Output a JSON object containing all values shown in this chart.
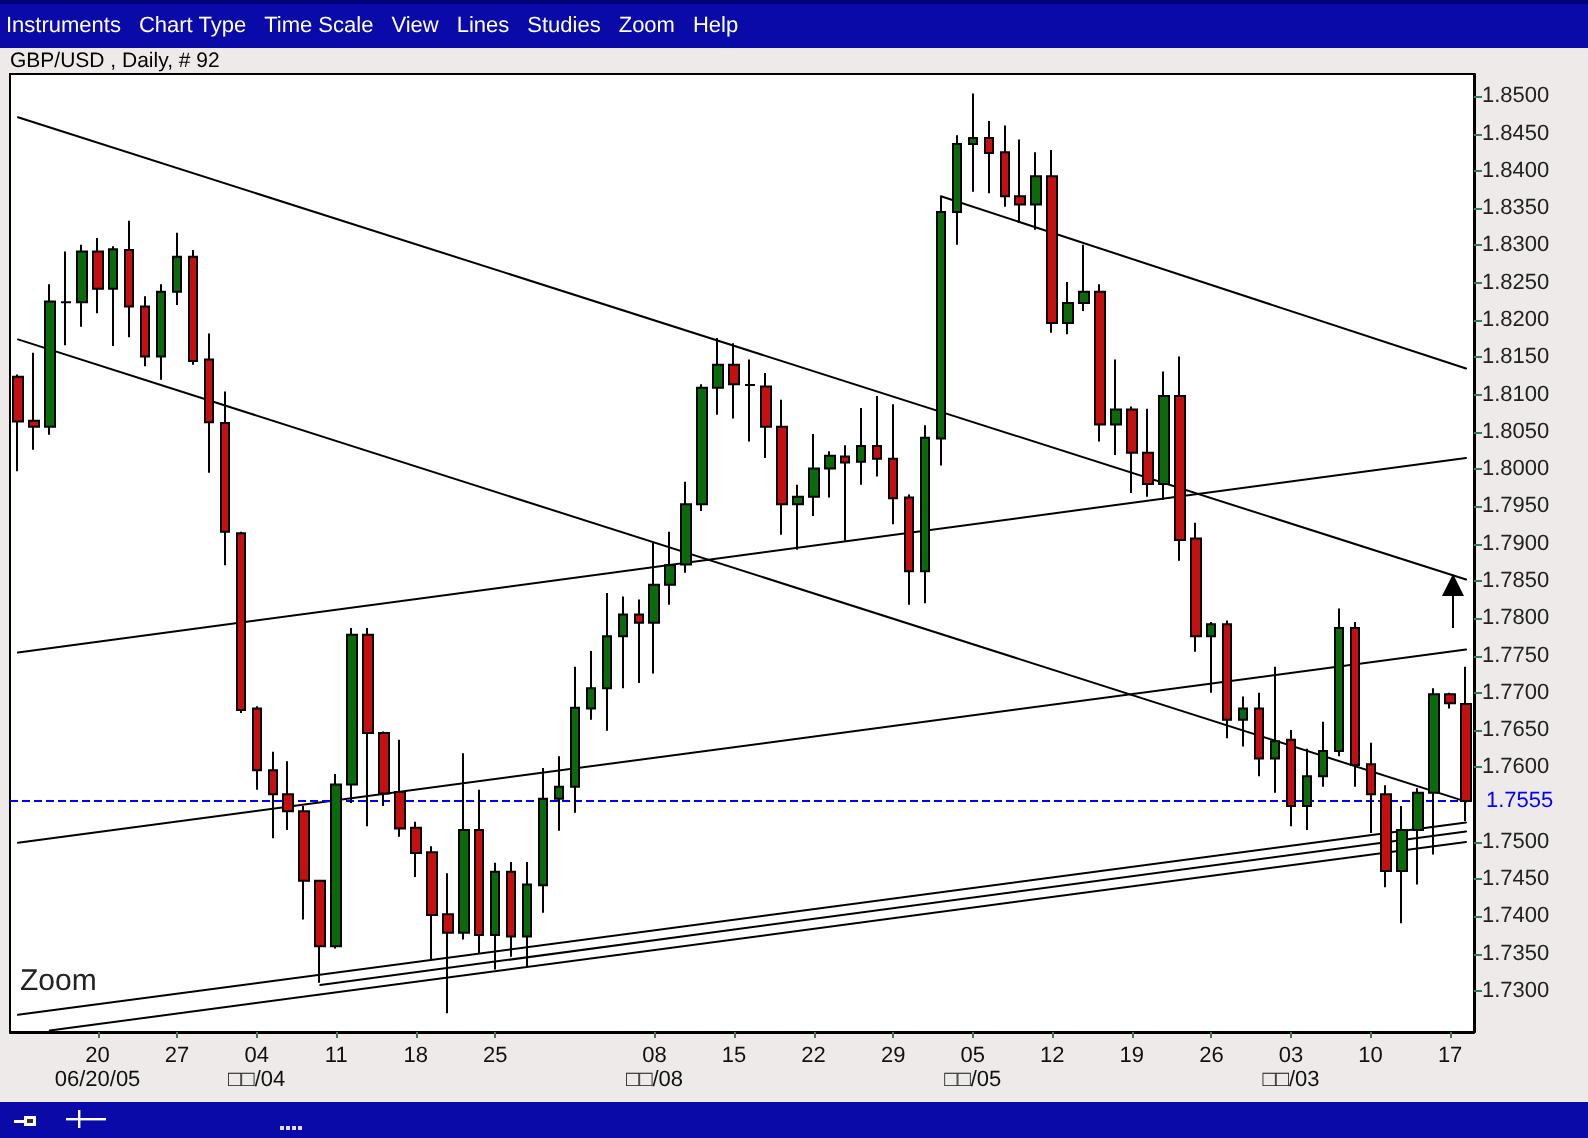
{
  "chart_data": {
    "type": "candlestick",
    "title": "GBP/USD , Daily, # 92",
    "annotations": [
      "Instruments",
      "Chart Type",
      "Time Scale",
      "View",
      "Lines",
      "Studies",
      "Zoom",
      "Help",
      "Zoom"
    ],
    "categories": [
      null,
      null,
      null,
      null,
      null,
      "20\n06/20/05",
      null,
      null,
      null,
      null,
      "27",
      null,
      null,
      null,
      null,
      "04\n□□/04",
      null,
      null,
      null,
      null,
      "11",
      null,
      null,
      null,
      null,
      "18",
      null,
      null,
      null,
      null,
      "25",
      null,
      null,
      null,
      null,
      null,
      null,
      null,
      null,
      null,
      "08\n□□/08",
      null,
      null,
      null,
      null,
      "15",
      null,
      null,
      null,
      null,
      "22",
      null,
      null,
      null,
      null,
      "29",
      null,
      null,
      null,
      null,
      "05\n□□/05",
      null,
      null,
      null,
      null,
      "12",
      null,
      null,
      null,
      null,
      "19",
      null,
      null,
      null,
      null,
      "26",
      null,
      null,
      null,
      null,
      "03\n□□/03",
      null,
      null,
      null,
      null,
      "10",
      null,
      null,
      null,
      null,
      "17",
      null
    ],
    "ohlc": [
      [
        1.8124,
        1.8127,
        1.7997,
        1.8064
      ],
      [
        1.8065,
        1.8156,
        1.8026,
        1.8057
      ],
      [
        1.8057,
        1.8248,
        1.8046,
        1.8225
      ],
      [
        1.8224,
        1.8292,
        1.8166,
        1.8224
      ],
      [
        1.8224,
        1.8301,
        1.8191,
        1.8292
      ],
      [
        1.8292,
        1.831,
        1.8209,
        1.8242
      ],
      [
        1.8242,
        1.8299,
        1.8165,
        1.8295
      ],
      [
        1.8294,
        1.8333,
        1.8177,
        1.8218
      ],
      [
        1.8218,
        1.8232,
        1.8138,
        1.8151
      ],
      [
        1.8151,
        1.8248,
        1.812,
        1.8238
      ],
      [
        1.8238,
        1.8317,
        1.822,
        1.8285
      ],
      [
        1.8285,
        1.8294,
        1.814,
        1.8145
      ],
      [
        1.8147,
        1.8182,
        1.7995,
        1.8063
      ],
      [
        1.8062,
        1.8104,
        1.7871,
        1.7916
      ],
      [
        1.7914,
        1.7916,
        1.7673,
        1.7677
      ],
      [
        1.7679,
        1.7682,
        1.757,
        1.7596
      ],
      [
        1.7596,
        1.7621,
        1.7505,
        1.7564
      ],
      [
        1.7564,
        1.7608,
        1.7516,
        1.7541
      ],
      [
        1.7541,
        1.7548,
        1.7396,
        1.7448
      ],
      [
        1.7448,
        1.7448,
        1.7311,
        1.736
      ],
      [
        1.736,
        1.7591,
        1.7357,
        1.7577
      ],
      [
        1.7577,
        1.7787,
        1.7552,
        1.7778
      ],
      [
        1.7778,
        1.7787,
        1.7521,
        1.7646
      ],
      [
        1.7646,
        1.7648,
        1.7548,
        1.7565
      ],
      [
        1.7567,
        1.7637,
        1.7507,
        1.7518
      ],
      [
        1.7519,
        1.7527,
        1.7453,
        1.7485
      ],
      [
        1.7486,
        1.7494,
        1.7342,
        1.7402
      ],
      [
        1.7403,
        1.7458,
        1.727,
        1.7378
      ],
      [
        1.7378,
        1.7619,
        1.7369,
        1.7516
      ],
      [
        1.7516,
        1.757,
        1.7351,
        1.7375
      ],
      [
        1.7375,
        1.7472,
        1.7329,
        1.746
      ],
      [
        1.746,
        1.7473,
        1.7346,
        1.7373
      ],
      [
        1.7373,
        1.7473,
        1.7333,
        1.7443
      ],
      [
        1.7442,
        1.7599,
        1.7405,
        1.7558
      ],
      [
        1.7558,
        1.7615,
        1.7515,
        1.7574
      ],
      [
        1.7574,
        1.7735,
        1.7539,
        1.768
      ],
      [
        1.7679,
        1.7756,
        1.7664,
        1.7706
      ],
      [
        1.7706,
        1.7834,
        1.7649,
        1.7776
      ],
      [
        1.7776,
        1.7829,
        1.7706,
        1.7805
      ],
      [
        1.7805,
        1.7825,
        1.7713,
        1.7794
      ],
      [
        1.7794,
        1.7901,
        1.7726,
        1.7845
      ],
      [
        1.7845,
        1.7916,
        1.7818,
        1.7871
      ],
      [
        1.7872,
        1.7983,
        1.7861,
        1.7953
      ],
      [
        1.7953,
        1.8114,
        1.7944,
        1.8109
      ],
      [
        1.8109,
        1.8176,
        1.8073,
        1.814
      ],
      [
        1.814,
        1.8169,
        1.8068,
        1.8114
      ],
      [
        1.8113,
        1.8147,
        1.8037,
        1.8113
      ],
      [
        1.8111,
        1.8129,
        1.8015,
        1.8057
      ],
      [
        1.8057,
        1.8093,
        1.7912,
        1.7953
      ],
      [
        1.7953,
        1.7979,
        1.7892,
        1.7963
      ],
      [
        1.7963,
        1.8047,
        1.7937,
        1.8001
      ],
      [
        1.8001,
        1.8024,
        1.7962,
        1.8018
      ],
      [
        1.8017,
        1.8032,
        1.7904,
        1.8009
      ],
      [
        1.801,
        1.8082,
        1.7979,
        1.8031
      ],
      [
        1.8031,
        1.8098,
        1.799,
        1.8014
      ],
      [
        1.8014,
        1.8087,
        1.7926,
        1.7961
      ],
      [
        1.7962,
        1.7966,
        1.7818,
        1.7863
      ],
      [
        1.7863,
        1.8059,
        1.782,
        1.8042
      ],
      [
        1.8041,
        1.8366,
        1.8005,
        1.8345
      ],
      [
        1.8345,
        1.8448,
        1.8301,
        1.8436
      ],
      [
        1.8436,
        1.8504,
        1.8372,
        1.8444
      ],
      [
        1.8444,
        1.8467,
        1.837,
        1.8424
      ],
      [
        1.8425,
        1.8461,
        1.8352,
        1.8366
      ],
      [
        1.8366,
        1.8442,
        1.833,
        1.8355
      ],
      [
        1.8355,
        1.8425,
        1.8321,
        1.8393
      ],
      [
        1.8393,
        1.8428,
        1.8183,
        1.8196
      ],
      [
        1.8196,
        1.8251,
        1.8181,
        1.8223
      ],
      [
        1.8223,
        1.8301,
        1.8212,
        1.8238
      ],
      [
        1.8238,
        1.8248,
        1.8037,
        1.806
      ],
      [
        1.806,
        1.8147,
        1.8019,
        1.808
      ],
      [
        1.808,
        1.8084,
        1.7968,
        1.8022
      ],
      [
        1.8022,
        1.8081,
        1.7963,
        1.798
      ],
      [
        1.798,
        1.8131,
        1.7959,
        1.8098
      ],
      [
        1.8098,
        1.8151,
        1.7877,
        1.7905
      ],
      [
        1.7907,
        1.7928,
        1.7755,
        1.7776
      ],
      [
        1.7776,
        1.7795,
        1.77,
        1.7792
      ],
      [
        1.7792,
        1.7797,
        1.7639,
        1.7664
      ],
      [
        1.7664,
        1.7695,
        1.7628,
        1.7679
      ],
      [
        1.7679,
        1.77,
        1.7588,
        1.7612
      ],
      [
        1.7612,
        1.7735,
        1.7566,
        1.7635
      ],
      [
        1.7637,
        1.765,
        1.7521,
        1.7548
      ],
      [
        1.7548,
        1.7625,
        1.7516,
        1.7588
      ],
      [
        1.7588,
        1.7661,
        1.7574,
        1.7622
      ],
      [
        1.7622,
        1.7813,
        1.7615,
        1.7787
      ],
      [
        1.7787,
        1.7795,
        1.7574,
        1.7603
      ],
      [
        1.7604,
        1.7633,
        1.7512,
        1.7564
      ],
      [
        1.7564,
        1.7576,
        1.7439,
        1.7461
      ],
      [
        1.7461,
        1.7548,
        1.7391,
        1.7516
      ],
      [
        1.7516,
        1.7572,
        1.7443,
        1.7566
      ],
      [
        1.7566,
        1.7706,
        1.7483,
        1.7698
      ],
      [
        1.7698,
        1.77,
        1.7679,
        1.7686
      ],
      [
        1.7685,
        1.7735,
        1.7528,
        1.7555
      ]
    ],
    "colors": [
      "#c41010",
      "#c41010",
      "#0b6b0b",
      "#000000",
      "#0b6b0b",
      "#c41010",
      "#0b6b0b",
      "#c41010",
      "#c41010",
      "#0b6b0b",
      "#0b6b0b",
      "#c41010",
      "#c41010",
      "#c41010",
      "#c41010",
      "#c41010",
      "#c41010",
      "#c41010",
      "#c41010",
      "#c41010",
      "#0b6b0b",
      "#0b6b0b",
      "#c41010",
      "#c41010",
      "#c41010",
      "#c41010",
      "#c41010",
      "#c41010",
      "#0b6b0b",
      "#c41010",
      "#0b6b0b",
      "#c41010",
      "#0b6b0b",
      "#0b6b0b",
      "#0b6b0b",
      "#0b6b0b",
      "#0b6b0b",
      "#0b6b0b",
      "#0b6b0b",
      "#c41010",
      "#0b6b0b",
      "#0b6b0b",
      "#0b6b0b",
      "#0b6b0b",
      "#0b6b0b",
      "#c41010",
      "#000000",
      "#c41010",
      "#c41010",
      "#0b6b0b",
      "#0b6b0b",
      "#0b6b0b",
      "#c41010",
      "#0b6b0b",
      "#c41010",
      "#c41010",
      "#c41010",
      "#0b6b0b",
      "#0b6b0b",
      "#0b6b0b",
      "#0b6b0b",
      "#c41010",
      "#c41010",
      "#c41010",
      "#0b6b0b",
      "#c41010",
      "#0b6b0b",
      "#0b6b0b",
      "#c41010",
      "#0b6b0b",
      "#c41010",
      "#c41010",
      "#0b6b0b",
      "#c41010",
      "#c41010",
      "#0b6b0b",
      "#c41010",
      "#0b6b0b",
      "#c41010",
      "#0b6b0b",
      "#c41010",
      "#0b6b0b",
      "#0b6b0b",
      "#0b6b0b",
      "#c41010",
      "#c41010",
      "#c41010",
      "#0b6b0b",
      "#0b6b0b",
      "#0b6b0b",
      "#c41010",
      "#c41010"
    ],
    "series": [
      {
        "type": "line",
        "color": "#000000",
        "values": [
          1.8472,
          null,
          null,
          null,
          null,
          null,
          null,
          null,
          null,
          null,
          null,
          null,
          null,
          null,
          null,
          null,
          null,
          null,
          null,
          null,
          null,
          null,
          null,
          null,
          null,
          null,
          null,
          null,
          null,
          null,
          null,
          null,
          null,
          null,
          null,
          null,
          null,
          null,
          null,
          null,
          null,
          null,
          null,
          null,
          null,
          null,
          null,
          null,
          null,
          null,
          null,
          null,
          null,
          null,
          null,
          null,
          null,
          null,
          null,
          null,
          null,
          null,
          null,
          null,
          null,
          null,
          null,
          null,
          null,
          null,
          null,
          null,
          null,
          null,
          null,
          null,
          null,
          null,
          null,
          null,
          null,
          null,
          null,
          null,
          null,
          null,
          null,
          null,
          null,
          null,
          null,
          1.7852
        ]
      },
      {
        "type": "line",
        "color": "#000000",
        "values": [
          1.8174,
          null,
          null,
          null,
          null,
          null,
          null,
          null,
          null,
          null,
          null,
          null,
          null,
          null,
          null,
          null,
          null,
          null,
          null,
          null,
          null,
          null,
          null,
          null,
          null,
          null,
          null,
          null,
          null,
          null,
          null,
          null,
          null,
          null,
          null,
          null,
          null,
          null,
          null,
          null,
          null,
          null,
          null,
          null,
          null,
          null,
          null,
          null,
          null,
          null,
          null,
          null,
          null,
          null,
          null,
          null,
          null,
          null,
          null,
          null,
          null,
          null,
          null,
          null,
          null,
          null,
          null,
          null,
          null,
          null,
          null,
          null,
          null,
          null,
          null,
          null,
          null,
          null,
          null,
          null,
          null,
          null,
          null,
          null,
          null,
          null,
          null,
          null,
          null,
          null,
          null,
          1.7554
        ]
      },
      {
        "type": "line",
        "color": "#000000",
        "values": [
          1.7754,
          null,
          null,
          null,
          null,
          null,
          null,
          null,
          null,
          null,
          null,
          null,
          null,
          null,
          null,
          null,
          null,
          null,
          null,
          null,
          null,
          null,
          null,
          null,
          null,
          null,
          null,
          null,
          null,
          null,
          null,
          null,
          null,
          null,
          null,
          null,
          null,
          null,
          null,
          null,
          null,
          null,
          null,
          null,
          null,
          null,
          null,
          null,
          null,
          null,
          null,
          null,
          null,
          null,
          null,
          null,
          null,
          null,
          null,
          null,
          null,
          null,
          null,
          null,
          null,
          null,
          null,
          null,
          null,
          null,
          null,
          null,
          null,
          null,
          null,
          null,
          null,
          null,
          null,
          null,
          null,
          null,
          null,
          null,
          null,
          null,
          null,
          null,
          null,
          null,
          null,
          1.8015
        ]
      },
      {
        "type": "line",
        "color": "#000000",
        "values": [
          1.7499,
          null,
          null,
          null,
          null,
          null,
          null,
          null,
          null,
          null,
          null,
          null,
          null,
          null,
          null,
          null,
          null,
          null,
          null,
          null,
          null,
          null,
          null,
          null,
          null,
          null,
          null,
          null,
          null,
          null,
          null,
          null,
          null,
          null,
          null,
          null,
          null,
          null,
          null,
          null,
          null,
          null,
          null,
          null,
          null,
          null,
          null,
          null,
          null,
          null,
          null,
          null,
          null,
          null,
          null,
          null,
          null,
          null,
          null,
          null,
          null,
          null,
          null,
          null,
          null,
          null,
          null,
          null,
          null,
          null,
          null,
          null,
          null,
          null,
          null,
          null,
          null,
          null,
          null,
          null,
          null,
          null,
          null,
          null,
          null,
          null,
          null,
          null,
          null,
          null,
          null,
          1.7758
        ]
      },
      {
        "type": "line",
        "color": "#000000",
        "values": [
          null,
          null,
          null,
          null,
          null,
          null,
          null,
          null,
          null,
          null,
          null,
          null,
          null,
          null,
          null,
          null,
          null,
          null,
          null,
          null,
          null,
          null,
          null,
          null,
          null,
          null,
          null,
          null,
          null,
          null,
          null,
          null,
          null,
          null,
          null,
          null,
          null,
          null,
          null,
          null,
          null,
          null,
          null,
          null,
          null,
          null,
          null,
          null,
          null,
          null,
          null,
          null,
          null,
          null,
          null,
          null,
          null,
          null,
          1.8366,
          null,
          null,
          null,
          null,
          null,
          null,
          null,
          null,
          null,
          null,
          null,
          null,
          null,
          null,
          null,
          null,
          null,
          null,
          null,
          null,
          null,
          null,
          null,
          null,
          null,
          null,
          null,
          null,
          null,
          null,
          null,
          null,
          1.8135
        ]
      },
      {
        "type": "line",
        "color": "#000000",
        "values": [
          1.7268,
          null,
          null,
          null,
          null,
          null,
          null,
          null,
          null,
          null,
          null,
          null,
          null,
          null,
          null,
          null,
          null,
          null,
          null,
          null,
          null,
          null,
          null,
          null,
          null,
          null,
          null,
          null,
          null,
          null,
          null,
          null,
          null,
          null,
          null,
          null,
          null,
          null,
          null,
          null,
          null,
          null,
          null,
          null,
          null,
          null,
          null,
          null,
          null,
          null,
          null,
          null,
          null,
          null,
          null,
          null,
          null,
          null,
          null,
          null,
          null,
          null,
          null,
          null,
          null,
          null,
          null,
          null,
          null,
          null,
          null,
          null,
          null,
          null,
          null,
          null,
          null,
          null,
          null,
          null,
          null,
          null,
          null,
          null,
          null,
          null,
          null,
          null,
          null,
          null,
          null,
          1.7526
        ]
      },
      {
        "type": "line",
        "color": "#000000",
        "values": [
          null,
          null,
          null,
          null,
          null,
          null,
          null,
          null,
          null,
          null,
          null,
          null,
          null,
          null,
          null,
          null,
          null,
          null,
          null,
          1.7308,
          null,
          null,
          null,
          null,
          null,
          null,
          null,
          null,
          null,
          null,
          null,
          null,
          null,
          null,
          null,
          null,
          null,
          null,
          null,
          null,
          null,
          null,
          null,
          null,
          null,
          null,
          null,
          null,
          null,
          null,
          null,
          null,
          null,
          null,
          null,
          null,
          null,
          null,
          null,
          null,
          null,
          null,
          null,
          null,
          null,
          null,
          null,
          null,
          null,
          null,
          null,
          null,
          null,
          null,
          null,
          null,
          null,
          null,
          null,
          null,
          null,
          null,
          null,
          null,
          null,
          null,
          null,
          null,
          null,
          null,
          null,
          1.7514
        ]
      },
      {
        "type": "line",
        "color": "#000000",
        "values": [
          null,
          null,
          1.7247,
          null,
          null,
          null,
          null,
          null,
          null,
          null,
          null,
          null,
          null,
          null,
          null,
          null,
          null,
          null,
          null,
          null,
          null,
          null,
          null,
          null,
          null,
          null,
          null,
          null,
          null,
          null,
          null,
          null,
          null,
          null,
          null,
          null,
          null,
          null,
          null,
          null,
          null,
          null,
          null,
          null,
          null,
          null,
          null,
          null,
          null,
          null,
          null,
          null,
          null,
          null,
          null,
          null,
          null,
          null,
          null,
          null,
          null,
          null,
          null,
          null,
          null,
          null,
          null,
          null,
          null,
          null,
          null,
          null,
          null,
          null,
          null,
          null,
          null,
          null,
          null,
          null,
          null,
          null,
          null,
          null,
          null,
          null,
          null,
          null,
          null,
          null,
          null,
          1.75
        ]
      }
    ],
    "ylim": [
      1.7245,
      1.853
    ],
    "yticks": [
      {
        "value": 1.73,
        "label": "1.7300"
      },
      {
        "value": 1.735,
        "label": "1.7350"
      },
      {
        "value": 1.74,
        "label": "1.7400"
      },
      {
        "value": 1.745,
        "label": "1.7450"
      },
      {
        "value": 1.75,
        "label": "1.7500"
      },
      {
        "value": 1.76,
        "label": "1.7600"
      },
      {
        "value": 1.765,
        "label": "1.7650"
      },
      {
        "value": 1.77,
        "label": "1.7700"
      },
      {
        "value": 1.775,
        "label": "1.7750"
      },
      {
        "value": 1.78,
        "label": "1.7800"
      },
      {
        "value": 1.785,
        "label": "1.7850"
      },
      {
        "value": 1.79,
        "label": "1.7900"
      },
      {
        "value": 1.795,
        "label": "1.7950"
      },
      {
        "value": 1.8,
        "label": "1.8000"
      },
      {
        "value": 1.805,
        "label": "1.8050"
      },
      {
        "value": 1.81,
        "label": "1.8100"
      },
      {
        "value": 1.815,
        "label": "1.8150"
      },
      {
        "value": 1.82,
        "label": "1.8200"
      },
      {
        "value": 1.825,
        "label": "1.8250"
      },
      {
        "value": 1.83,
        "label": "1.8300"
      },
      {
        "value": 1.835,
        "label": "1.8350"
      },
      {
        "value": 1.84,
        "label": "1.8400"
      },
      {
        "value": 1.845,
        "label": "1.8450"
      },
      {
        "value": 1.85,
        "label": "1.8500"
      }
    ],
    "ref_lines": [
      {
        "axis": "y",
        "value": 1.7555,
        "label": "1.7555",
        "color": "#0000ff",
        "line_style": "dashed"
      }
    ]
  }
}
